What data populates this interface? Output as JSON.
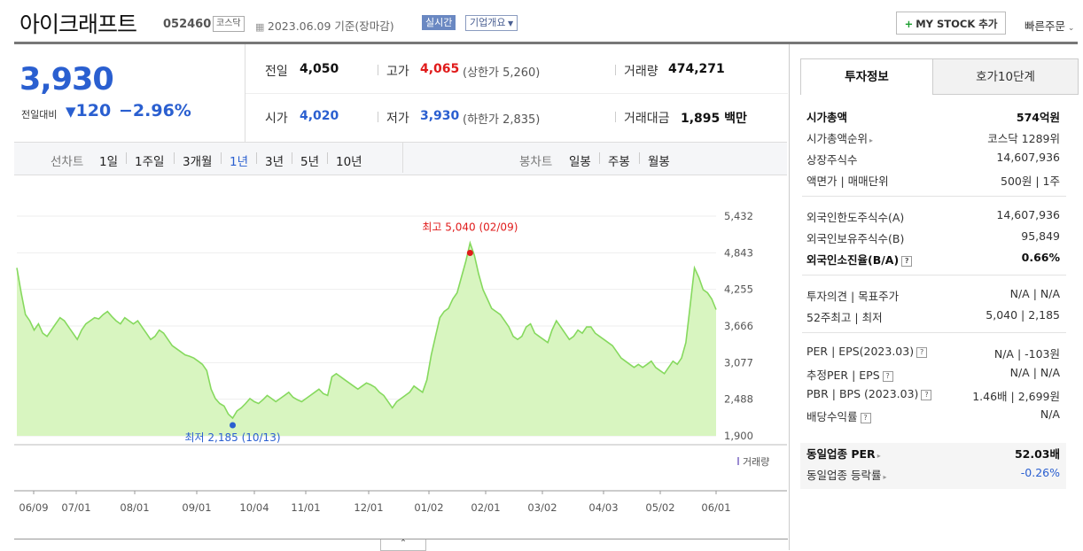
{
  "header": {
    "name": "아이크래프트",
    "code": "052460",
    "market": "코스닥",
    "date_text": "2023.06.09 기준(장마감)",
    "realtime": "실시간",
    "corp_info": "기업개요",
    "mystock": "MY STOCK 추가",
    "quick_order": "빠른주문"
  },
  "price": {
    "current": "3,930",
    "cmp_label": "전일대비",
    "cmp_change": "120",
    "cmp_rate": "−2.96%"
  },
  "quote": {
    "prev_label": "전일",
    "prev": "4,050",
    "high_label": "고가",
    "high": "4,065",
    "upper_limit": "(상한가 5,260)",
    "volume_label": "거래량",
    "volume": "474,271",
    "open_label": "시가",
    "open": "4,020",
    "low_label": "저가",
    "low": "3,930",
    "lower_limit": "(하한가 2,835)",
    "amount_label": "거래대금",
    "amount": "1,895",
    "amount_unit": "백만"
  },
  "toolbar": {
    "line_label": "선차트",
    "line_periods": [
      "1일",
      "1주일",
      "3개월",
      "1년",
      "3년",
      "5년",
      "10년"
    ],
    "candle_label": "봉차트",
    "candle_periods": [
      "일봉",
      "주봉",
      "월봉"
    ]
  },
  "colors": {
    "price_down": "#2a5fd0",
    "price_up": "#e01b1b",
    "area_fill": "#d8f5c0",
    "line": "#86d95e",
    "volume": "#9b8cd1"
  },
  "chart_data": {
    "type": "area",
    "title": "",
    "ylim": [
      1900,
      5432
    ],
    "y_ticks": [
      "5,432",
      "4,843",
      "4,255",
      "3,666",
      "3,077",
      "2,488",
      "1,900"
    ],
    "x_ticks": [
      "06/09",
      "07/01",
      "08/01",
      "09/01",
      "10/04",
      "11/01",
      "12/01",
      "01/02",
      "02/01",
      "03/02",
      "04/03",
      "05/02",
      "06/01"
    ],
    "high_label": "최고 5,040 (02/09)",
    "low_label": "최저 2,185 (10/13)",
    "volume_legend": "거래량",
    "series": [
      {
        "values": [
          4600,
          4200,
          3850,
          3750,
          3600,
          3700,
          3550,
          3500,
          3600,
          3700,
          3800,
          3750,
          3650,
          3550,
          3450,
          3600,
          3700,
          3750,
          3800,
          3780,
          3850,
          3900,
          3820,
          3750,
          3700,
          3800,
          3750,
          3700,
          3750,
          3650,
          3550,
          3450,
          3500,
          3600,
          3550,
          3450,
          3350,
          3300,
          3250,
          3200,
          3180,
          3150,
          3100,
          3050,
          2950,
          2650,
          2500,
          2420,
          2380,
          2250,
          2185,
          2300,
          2350,
          2420,
          2500,
          2450,
          2420,
          2480,
          2550,
          2500,
          2450,
          2500,
          2550,
          2600,
          2520,
          2480,
          2450,
          2500,
          2550,
          2600,
          2650,
          2580,
          2550,
          2850,
          2900,
          2850,
          2800,
          2750,
          2700,
          2650,
          2700,
          2750,
          2720,
          2680,
          2600,
          2550,
          2450,
          2350,
          2450,
          2500,
          2550,
          2600,
          2700,
          2650,
          2600,
          2800,
          3200,
          3500,
          3800,
          3900,
          3950,
          4100,
          4200,
          4450,
          4700,
          5000,
          4800,
          4500,
          4250,
          4100,
          3950,
          3900,
          3850,
          3750,
          3650,
          3500,
          3450,
          3500,
          3650,
          3700,
          3550,
          3500,
          3450,
          3400,
          3600,
          3750,
          3650,
          3550,
          3450,
          3500,
          3600,
          3550,
          3650,
          3650,
          3550,
          3500,
          3450,
          3400,
          3350,
          3250,
          3150,
          3100,
          3050,
          3000,
          3050,
          3000,
          3050,
          3100,
          3000,
          2950,
          2900,
          3000,
          3100,
          3050,
          3150,
          3400,
          4000,
          4600,
          4450,
          4250,
          4200,
          4100,
          3930
        ]
      }
    ],
    "volume": [
      0,
      0,
      0,
      0,
      0,
      0,
      0,
      0,
      0,
      0,
      0,
      0,
      0,
      0,
      0,
      0,
      0,
      0,
      0,
      0,
      0,
      0,
      0,
      0,
      0,
      0,
      0,
      0,
      0,
      0,
      0,
      0,
      0,
      0,
      0,
      0,
      0,
      0,
      0,
      0,
      0,
      0,
      0,
      0,
      0,
      0,
      0,
      0,
      0,
      0,
      0,
      0,
      0,
      0,
      0,
      0,
      0,
      0,
      0,
      0,
      0,
      0,
      0,
      0,
      0,
      0,
      0,
      0,
      0,
      0,
      0,
      0,
      0,
      0,
      0,
      0,
      0,
      0,
      0,
      0,
      0,
      0,
      0,
      0,
      0,
      0,
      0,
      0,
      0,
      0,
      0,
      0,
      0,
      0,
      0,
      0,
      0,
      0,
      0,
      0,
      0,
      0,
      0,
      0,
      0,
      0,
      0,
      0,
      0,
      0,
      0,
      0,
      0,
      0,
      0,
      0,
      0,
      0,
      0,
      0,
      0,
      0,
      0,
      0,
      0,
      0,
      0,
      0,
      0,
      0,
      0,
      0,
      0,
      0,
      0,
      0,
      0,
      0,
      0,
      0,
      0,
      0,
      0,
      0,
      0,
      0,
      0,
      0,
      0,
      0,
      0,
      0,
      0,
      0,
      0,
      0,
      0,
      0,
      0,
      0,
      0,
      0,
      0
    ]
  },
  "panel": {
    "tab_invest": "투자정보",
    "tab_quote": "호가10단계",
    "market_cap_label": "시가총액",
    "market_cap": "574억원",
    "cap_rank_label": "시가총액순위",
    "cap_rank": "코스닥 1289위",
    "shares_label": "상장주식수",
    "shares": "14,607,936",
    "par_label": "액면가 | 매매단위",
    "par": "500원 | 1주",
    "foreign_limit_label": "외국인한도주식수(A)",
    "foreign_limit": "14,607,936",
    "foreign_hold_label": "외국인보유주식수(B)",
    "foreign_hold": "95,849",
    "foreign_rate_label": "외국인소진율(B/A)",
    "foreign_rate": "0.66%",
    "opinion_label": "투자의견 | 목표주가",
    "opinion": "N/A | N/A",
    "w52_label": "52주최고 | 최저",
    "w52": "5,040 | 2,185",
    "per_label": "PER | EPS(2023.03)",
    "per": "N/A | -103원",
    "est_label": "추정PER | EPS",
    "est": "N/A | N/A",
    "pbr_label": "PBR | BPS (2023.03)",
    "pbr": "1.46배 | 2,699원",
    "div_label": "배당수익률",
    "div": "N/A",
    "sector_per_label": "동일업종 PER",
    "sector_per": "52.03배",
    "sector_rate_label": "동일업종 등락률",
    "sector_rate": "-0.26%"
  }
}
